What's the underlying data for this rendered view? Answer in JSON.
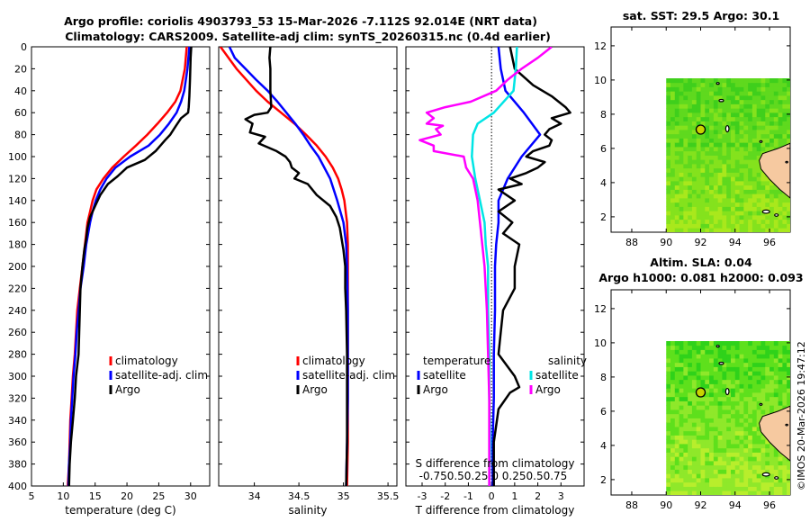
{
  "header": {
    "title_line1": "Argo profile: coriolis 4903793_53 15-Mar-2026 -7.112S 92.014E (NRT data)",
    "title_line2": "Climatology: CARS2009. Satellite-adj clim: synTS_20260315.nc (0.4d earlier)"
  },
  "colors": {
    "climatology": "#ff0000",
    "satellite": "#0000ff",
    "argo": "#000000",
    "sal_satellite": "#00e5e5",
    "sal_argo": "#ff00ff",
    "land": "#f6c9a0"
  },
  "depth_axis": {
    "ylim": [
      0,
      400
    ],
    "ticks": [
      "0",
      "20",
      "40",
      "60",
      "80",
      "100",
      "120",
      "140",
      "160",
      "180",
      "200",
      "220",
      "240",
      "260",
      "280",
      "300",
      "320",
      "340",
      "360",
      "380",
      "400"
    ]
  },
  "chart_data": [
    {
      "type": "line",
      "id": "temperature",
      "xlabel": "temperature (deg C)",
      "xlim": [
        5,
        33
      ],
      "xticks": [
        "5",
        "10",
        "15",
        "20",
        "25",
        "30"
      ],
      "legend": [
        "climatology",
        "satellite-adj. clim",
        "Argo"
      ],
      "series": [
        {
          "name": "climatology",
          "depth": [
            0,
            20,
            40,
            50,
            60,
            70,
            80,
            90,
            100,
            110,
            120,
            130,
            140,
            150,
            160,
            180,
            200,
            220,
            240,
            260,
            280,
            300,
            320,
            340,
            360,
            380,
            400
          ],
          "values": [
            29.4,
            29.1,
            28.4,
            27.6,
            26.3,
            24.8,
            23.2,
            21.4,
            19.5,
            17.7,
            16.3,
            15.2,
            14.6,
            14.2,
            13.8,
            13.4,
            13.0,
            12.6,
            12.2,
            12.0,
            11.8,
            11.5,
            11.3,
            11.1,
            11.0,
            10.9,
            10.7
          ]
        },
        {
          "name": "satellite-adj. clim",
          "depth": [
            0,
            20,
            40,
            50,
            60,
            70,
            80,
            90,
            100,
            110,
            120,
            130,
            140,
            150,
            160,
            180,
            200,
            220,
            240,
            260,
            280,
            300,
            320,
            340,
            360,
            380,
            400
          ],
          "values": [
            29.8,
            29.5,
            29.0,
            28.5,
            27.8,
            26.6,
            25.2,
            23.4,
            20.5,
            18.2,
            16.8,
            15.8,
            15.1,
            14.6,
            14.2,
            13.6,
            13.2,
            12.7,
            12.4,
            12.1,
            11.9,
            11.6,
            11.4,
            11.2,
            11.1,
            10.9,
            10.8
          ]
        },
        {
          "name": "Argo",
          "depth": [
            0,
            10,
            30,
            45,
            55,
            60,
            65,
            72,
            80,
            85,
            95,
            103,
            110,
            118,
            125,
            135,
            145,
            155,
            165,
            175,
            185,
            200,
            220,
            240,
            260,
            280,
            300,
            320,
            340,
            360,
            380,
            400
          ],
          "values": [
            30.1,
            30.0,
            29.9,
            29.8,
            29.7,
            29.6,
            28.5,
            27.7,
            26.8,
            26.0,
            24.5,
            22.8,
            20.0,
            18.5,
            17.0,
            15.8,
            15.0,
            14.2,
            13.8,
            13.6,
            13.3,
            13.0,
            12.7,
            12.6,
            12.5,
            12.4,
            12.0,
            11.8,
            11.5,
            11.2,
            11.0,
            10.9
          ]
        }
      ]
    },
    {
      "type": "line",
      "id": "salinity",
      "xlabel": "salinity",
      "xlim": [
        33.6,
        35.6
      ],
      "xticks": [
        "34",
        "34.5",
        "35",
        "35.5"
      ],
      "legend": [
        "climatology",
        "satellite-adj. clim",
        "Argo"
      ],
      "series": [
        {
          "name": "climatology",
          "depth": [
            0,
            20,
            40,
            50,
            60,
            70,
            80,
            90,
            100,
            110,
            120,
            130,
            140,
            160,
            180,
            200,
            240,
            280,
            320,
            360,
            400
          ],
          "values": [
            33.62,
            33.8,
            34.02,
            34.15,
            34.3,
            34.45,
            34.58,
            34.7,
            34.8,
            34.88,
            34.94,
            34.98,
            35.01,
            35.04,
            35.05,
            35.05,
            35.05,
            35.05,
            35.05,
            35.05,
            35.04
          ]
        },
        {
          "name": "satellite-adj. clim",
          "depth": [
            0,
            10,
            20,
            30,
            40,
            50,
            60,
            70,
            80,
            90,
            100,
            120,
            140,
            160,
            180,
            200,
            240,
            280,
            320,
            360,
            400
          ],
          "values": [
            33.72,
            33.78,
            33.9,
            34.02,
            34.15,
            34.26,
            34.36,
            34.46,
            34.55,
            34.63,
            34.72,
            34.85,
            34.93,
            35.0,
            35.03,
            35.04,
            35.05,
            35.05,
            35.05,
            35.04,
            35.03
          ]
        },
        {
          "name": "Argo",
          "depth": [
            0,
            10,
            20,
            40,
            55,
            60,
            62,
            66,
            70,
            78,
            82,
            88,
            95,
            100,
            105,
            110,
            115,
            120,
            125,
            135,
            145,
            155,
            165,
            175,
            185,
            200,
            220,
            240,
            280,
            320,
            360,
            400
          ],
          "values": [
            34.18,
            34.17,
            34.18,
            34.18,
            34.19,
            34.15,
            34.0,
            33.9,
            33.98,
            33.95,
            34.12,
            34.05,
            34.25,
            34.35,
            34.4,
            34.42,
            34.5,
            34.45,
            34.6,
            34.7,
            34.85,
            34.92,
            34.96,
            34.98,
            35.0,
            35.02,
            35.02,
            35.03,
            35.04,
            35.04,
            35.04,
            35.03
          ]
        }
      ]
    },
    {
      "type": "line",
      "id": "difference",
      "xlabel": "T difference from climatology",
      "s_axis_label": "S difference from climatology",
      "s_ticks": "-0.750.50.25 0 0.250.50.75",
      "xlim": [
        -3.7,
        4
      ],
      "xticks": [
        "-3",
        "-2",
        "-1",
        "0",
        "1",
        "2",
        "3"
      ],
      "legend_headers": [
        "temperature",
        "salinity"
      ],
      "legend": [
        "satellite",
        "Argo"
      ],
      "series": [
        {
          "name": "temperature satellite",
          "depth": [
            0,
            20,
            40,
            60,
            80,
            100,
            120,
            140,
            160,
            180,
            200,
            240,
            280,
            320,
            360,
            400
          ],
          "values": [
            0.3,
            0.4,
            0.6,
            1.4,
            2.1,
            1.3,
            0.7,
            0.3,
            0.3,
            0.2,
            0.15,
            0.15,
            0.1,
            0.1,
            0.05,
            0.05
          ]
        },
        {
          "name": "temperature Argo",
          "depth": [
            0,
            20,
            35,
            45,
            55,
            60,
            65,
            70,
            75,
            80,
            85,
            90,
            95,
            100,
            105,
            110,
            115,
            120,
            125,
            130,
            140,
            150,
            160,
            170,
            180,
            200,
            220,
            240,
            260,
            280,
            300,
            310,
            315,
            330,
            360,
            380,
            400
          ],
          "values": [
            0.8,
            1.0,
            1.8,
            2.6,
            3.2,
            3.4,
            2.6,
            3.0,
            2.5,
            2.3,
            2.6,
            2.5,
            1.8,
            1.5,
            2.3,
            2.0,
            1.5,
            0.8,
            1.3,
            0.3,
            1.0,
            0.3,
            0.9,
            0.5,
            1.2,
            1.0,
            1.0,
            0.5,
            0.4,
            0.3,
            1.0,
            1.2,
            0.8,
            0.3,
            0.1,
            0.1,
            0.1
          ]
        },
        {
          "name": "salinity satellite",
          "depth": [
            0,
            20,
            40,
            60,
            70,
            80,
            100,
            120,
            140,
            160,
            180,
            200,
            240,
            280,
            320,
            360,
            400
          ],
          "values": [
            1.1,
            1.05,
            0.95,
            0.1,
            -0.6,
            -0.8,
            -0.85,
            -0.7,
            -0.5,
            -0.3,
            -0.25,
            -0.15,
            -0.15,
            -0.1,
            -0.1,
            -0.05,
            -0.1
          ]
        },
        {
          "name": "salinity Argo",
          "depth": [
            0,
            5,
            10,
            20,
            30,
            40,
            50,
            55,
            60,
            65,
            70,
            72,
            75,
            80,
            85,
            90,
            95,
            100,
            110,
            120,
            140,
            160,
            200,
            240,
            280,
            320,
            360,
            400
          ],
          "values": [
            2.6,
            2.3,
            2.0,
            1.3,
            0.7,
            0.2,
            -0.9,
            -2.0,
            -2.8,
            -2.5,
            -2.8,
            -2.1,
            -2.4,
            -2.2,
            -3.1,
            -2.5,
            -2.5,
            -1.2,
            -1.1,
            -0.8,
            -0.6,
            -0.5,
            -0.3,
            -0.2,
            -0.15,
            -0.1,
            -0.1,
            -0.1
          ]
        }
      ]
    },
    {
      "type": "heatmap",
      "id": "sst-map",
      "title": "sat. SST: 29.5 Argo: 30.1",
      "xlim": [
        86.8,
        97.2
      ],
      "ylim": [
        1.1,
        13.1
      ],
      "xticks": [
        "88",
        "90",
        "92",
        "94",
        "96"
      ],
      "yticks": [
        "2",
        "4",
        "6",
        "8",
        "10",
        "12"
      ],
      "data_extent_lon": [
        90,
        97.2
      ],
      "data_extent_lat": [
        1.1,
        10.1
      ],
      "argo_position": [
        92.0,
        7.1
      ]
    },
    {
      "type": "heatmap",
      "id": "sla-map",
      "title": "Altim. SLA: 0.04",
      "subtitle": "Argo h1000: 0.081 h2000: 0.093",
      "xlim": [
        86.8,
        97.2
      ],
      "ylim": [
        1.1,
        13.1
      ],
      "xticks": [
        "88",
        "90",
        "92",
        "94",
        "96"
      ],
      "yticks": [
        "2",
        "4",
        "6",
        "8",
        "10",
        "12"
      ],
      "data_extent_lon": [
        90,
        97.2
      ],
      "data_extent_lat": [
        1.1,
        10.1
      ],
      "argo_position": [
        92.0,
        7.1
      ]
    }
  ],
  "footer": {
    "credit": "©IMOS 20-Mar-2026 19:47:12"
  }
}
